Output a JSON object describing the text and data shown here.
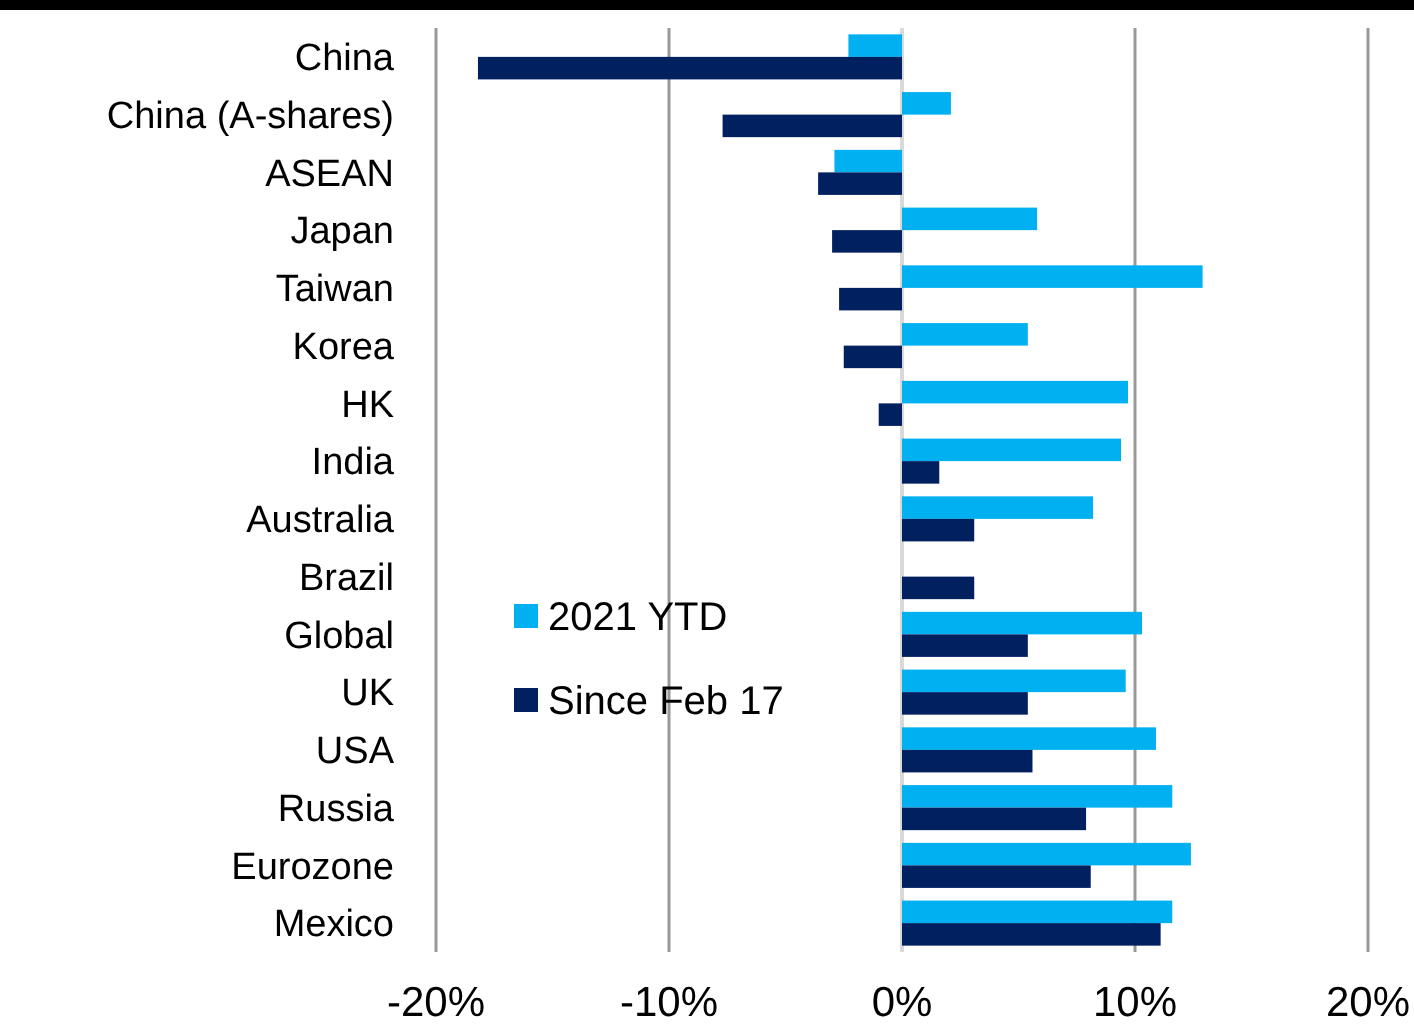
{
  "chart_data": {
    "type": "bar",
    "orientation": "horizontal",
    "categories": [
      "China",
      "China (A-shares)",
      "ASEAN",
      "Japan",
      "Taiwan",
      "Korea",
      "HK",
      "India",
      "Australia",
      "Brazil",
      "Global",
      "UK",
      "USA",
      "Russia",
      "Eurozone",
      "Mexico"
    ],
    "series": [
      {
        "name": "2021 YTD",
        "color": "#00b0f0",
        "values": [
          -2.3,
          2.1,
          -2.9,
          5.8,
          12.9,
          5.4,
          9.7,
          9.4,
          8.2,
          0,
          10.3,
          9.6,
          10.9,
          11.6,
          12.4,
          11.6
        ]
      },
      {
        "name": "Since Feb 17",
        "color": "#002060",
        "values": [
          -18.2,
          -7.7,
          -3.6,
          -3.0,
          -2.7,
          -2.5,
          -1.0,
          1.6,
          3.1,
          3.1,
          5.4,
          5.4,
          5.6,
          7.9,
          8.1,
          11.1
        ]
      }
    ],
    "xlim": [
      -20,
      20
    ],
    "xticks": [
      {
        "value": -20,
        "label": "-20%"
      },
      {
        "value": -10,
        "label": "-10%"
      },
      {
        "value": 0,
        "label": "0%"
      },
      {
        "value": 10,
        "label": "10%"
      },
      {
        "value": 20,
        "label": "20%"
      }
    ],
    "grid": "x",
    "legend": "left"
  }
}
